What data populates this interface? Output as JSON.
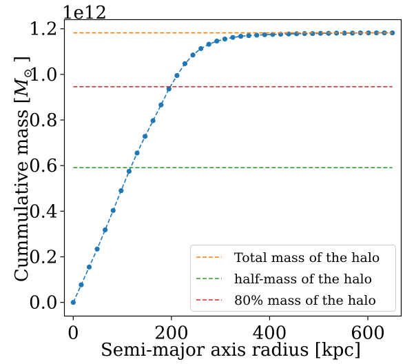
{
  "chart_data": {
    "type": "line",
    "title": "",
    "xlabel": "Semi-major axis radius [kpc]",
    "ylabel_text": "Cummulative mass [",
    "ylabel_symbol": "M",
    "ylabel_sub": "⊙",
    "ylabel_close": " ]",
    "y_offset_label": "1e12",
    "xlim": [
      -18,
      668
    ],
    "ylim": [
      -0.06,
      1.24
    ],
    "xticks": [
      0,
      200,
      400,
      600
    ],
    "xtick_labels": [
      "0",
      "200",
      "400",
      "600"
    ],
    "yticks": [
      0.0,
      0.2,
      0.4,
      0.6,
      0.8,
      1.0,
      1.2
    ],
    "ytick_labels": [
      "0.0",
      "0.2",
      "0.4",
      "0.6",
      "0.8",
      "1.0",
      "1.2"
    ],
    "grid": false,
    "legend_position": "lower-right",
    "series": [
      {
        "color": "#1f77b4",
        "style": "dashed-with-markers",
        "x": [
          0,
          16.25,
          32.5,
          48.75,
          65,
          81.25,
          97.5,
          113.75,
          130,
          146.25,
          162.5,
          178.75,
          195,
          211.25,
          227.5,
          243.75,
          260,
          276.25,
          292.5,
          308.75,
          325,
          341.25,
          357.5,
          373.75,
          390,
          406.25,
          422.5,
          438.75,
          455,
          471.25,
          487.5,
          503.75,
          520,
          536.25,
          552.5,
          568.75,
          585,
          601.25,
          617.5,
          633.75,
          650
        ],
        "y": [
          0.0,
          0.077,
          0.155,
          0.234,
          0.318,
          0.403,
          0.49,
          0.575,
          0.655,
          0.728,
          0.797,
          0.866,
          0.936,
          0.995,
          1.047,
          1.085,
          1.113,
          1.132,
          1.146,
          1.155,
          1.162,
          1.167,
          1.17,
          1.172,
          1.174,
          1.175,
          1.176,
          1.177,
          1.178,
          1.179,
          1.179,
          1.18,
          1.18,
          1.181,
          1.181,
          1.181,
          1.182,
          1.182,
          1.182,
          1.182,
          1.182
        ]
      },
      {
        "name": "Total mass of the halo",
        "color": "#ff7f0e",
        "style": "dashed",
        "x": [
          0,
          650
        ],
        "y": [
          1.182,
          1.182
        ]
      },
      {
        "name": "half-mass of the halo",
        "color": "#2ca02c",
        "style": "dashed",
        "x": [
          0,
          650
        ],
        "y": [
          0.591,
          0.591
        ]
      },
      {
        "name": "80% mass of the halo",
        "color": "#d62728",
        "style": "dashed",
        "x": [
          0,
          650
        ],
        "y": [
          0.946,
          0.946
        ]
      }
    ]
  }
}
